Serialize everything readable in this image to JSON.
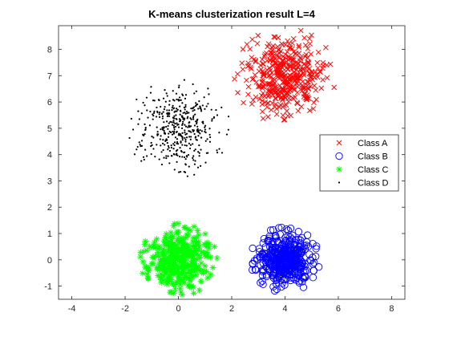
{
  "chart_data": {
    "type": "scatter",
    "title": "K-means clusterization result L=4",
    "xlabel": "",
    "ylabel": "",
    "xlim": [
      -4.5,
      8.5
    ],
    "ylim": [
      -1.5,
      8.9
    ],
    "xticks": [
      -4,
      -2,
      0,
      2,
      4,
      6,
      8
    ],
    "yticks": [
      -1,
      0,
      1,
      2,
      3,
      4,
      5,
      6,
      7,
      8
    ],
    "grid": false,
    "legend_position": "right",
    "series": [
      {
        "name": "Class A",
        "marker": "x",
        "color": "#ff0000",
        "center": [
          4.0,
          7.0
        ],
        "radius": 1.9,
        "count": 420
      },
      {
        "name": "Class B",
        "marker": "o",
        "color": "#0000ff",
        "center": [
          4.0,
          0.0
        ],
        "radius": 1.3,
        "count": 420
      },
      {
        "name": "Class C",
        "marker": "*",
        "color": "#00ff00",
        "center": [
          0.0,
          0.0
        ],
        "radius": 1.45,
        "count": 420
      },
      {
        "name": "Class D",
        "marker": ".",
        "color": "#000000",
        "center": [
          0.0,
          5.0
        ],
        "radius": 1.95,
        "count": 420
      }
    ]
  }
}
